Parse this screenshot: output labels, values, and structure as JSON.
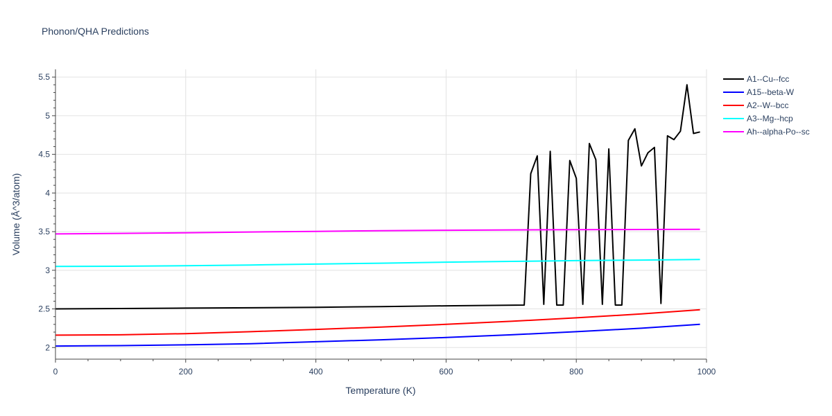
{
  "chart_data": {
    "type": "line",
    "title": "Phonon/QHA Predictions",
    "xlabel": "Temperature (K)",
    "ylabel": "Volume (Å^3/atom)",
    "xlim": [
      0,
      1000
    ],
    "ylim": [
      1.85,
      5.6
    ],
    "xticks": [
      0,
      200,
      400,
      600,
      800,
      1000
    ],
    "yticks": [
      2,
      2.5,
      3,
      3.5,
      4,
      4.5,
      5,
      5.5
    ],
    "xtick_labels": [
      "0",
      "200",
      "400",
      "600",
      "800",
      "1000"
    ],
    "ytick_labels": [
      "2",
      "2.5",
      "3",
      "3.5",
      "4",
      "4.5",
      "5",
      "5.5"
    ],
    "grid": true,
    "legend_position": "top-right",
    "series": [
      {
        "name": "A1--Cu--fcc",
        "color": "#000000",
        "x": [
          0,
          100,
          200,
          300,
          400,
          500,
          600,
          720,
          730,
          740,
          750,
          760,
          770,
          780,
          790,
          800,
          810,
          820,
          830,
          840,
          850,
          860,
          870,
          880,
          890,
          900,
          910,
          920,
          930,
          940,
          950,
          960,
          970,
          980,
          990
        ],
        "y": [
          2.5,
          2.505,
          2.51,
          2.515,
          2.52,
          2.53,
          2.54,
          2.55,
          4.25,
          4.48,
          2.56,
          4.54,
          2.55,
          2.55,
          4.42,
          4.19,
          2.56,
          4.64,
          4.43,
          2.56,
          4.57,
          2.55,
          2.55,
          4.68,
          4.83,
          4.35,
          4.52,
          4.59,
          2.57,
          4.74,
          4.69,
          4.8,
          5.4,
          4.77,
          4.79
        ]
      },
      {
        "name": "A15--beta-W",
        "color": "#0000ff",
        "x": [
          0,
          100,
          200,
          300,
          400,
          500,
          600,
          700,
          800,
          900,
          990
        ],
        "y": [
          2.02,
          2.025,
          2.035,
          2.05,
          2.075,
          2.1,
          2.13,
          2.165,
          2.205,
          2.25,
          2.3
        ]
      },
      {
        "name": "A2--W--bcc",
        "color": "#ff0000",
        "x": [
          0,
          100,
          200,
          300,
          400,
          500,
          600,
          700,
          800,
          900,
          990
        ],
        "y": [
          2.16,
          2.165,
          2.18,
          2.205,
          2.235,
          2.265,
          2.3,
          2.34,
          2.385,
          2.435,
          2.49
        ]
      },
      {
        "name": "A3--Mg--hcp",
        "color": "#00ffff",
        "x": [
          0,
          100,
          200,
          300,
          400,
          500,
          600,
          700,
          800,
          900,
          990
        ],
        "y": [
          3.05,
          3.052,
          3.058,
          3.068,
          3.08,
          3.092,
          3.105,
          3.115,
          3.125,
          3.132,
          3.14
        ]
      },
      {
        "name": "Ah--alpha-Po--sc",
        "color": "#ff00ff",
        "x": [
          0,
          100,
          200,
          300,
          400,
          500,
          600,
          700,
          800,
          900,
          990
        ],
        "y": [
          3.47,
          3.477,
          3.485,
          3.495,
          3.503,
          3.512,
          3.518,
          3.522,
          3.525,
          3.528,
          3.53
        ]
      }
    ]
  }
}
